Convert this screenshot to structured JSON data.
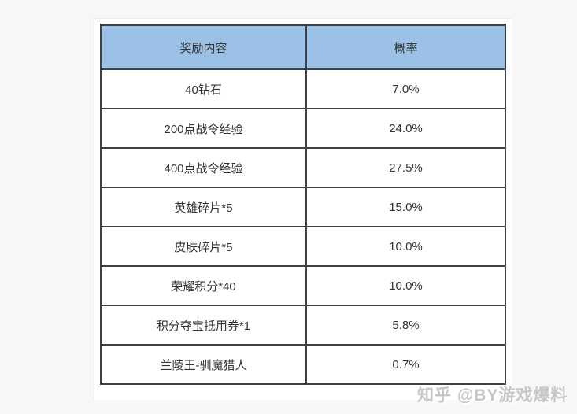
{
  "table": {
    "headers": [
      "奖励内容",
      "概率"
    ],
    "rows": [
      {
        "item": "40钻石",
        "prob": "7.0%"
      },
      {
        "item": "200点战令经验",
        "prob": "24.0%"
      },
      {
        "item": "400点战令经验",
        "prob": "27.5%"
      },
      {
        "item": "英雄碎片*5",
        "prob": "15.0%"
      },
      {
        "item": "皮肤碎片*5",
        "prob": "10.0%"
      },
      {
        "item": "荣耀积分*40",
        "prob": "10.0%"
      },
      {
        "item": "积分夺宝抵用券*1",
        "prob": "5.8%"
      },
      {
        "item": "兰陵王-驯魔猎人",
        "prob": "0.7%"
      }
    ]
  },
  "watermark": "知乎 @BY游戏爆料",
  "colors": {
    "header_bg": "#9bc1e6",
    "border": "#3c4148",
    "text": "#333333",
    "page_bg": "#f7f7f7",
    "panel_bg": "#ffffff",
    "watermark": "#c6c6c6"
  },
  "chart_data": {
    "type": "table",
    "title": "",
    "columns": [
      "奖励内容",
      "概率"
    ],
    "rows": [
      [
        "40钻石",
        "7.0%"
      ],
      [
        "200点战令经验",
        "24.0%"
      ],
      [
        "400点战令经验",
        "27.5%"
      ],
      [
        "英雄碎片*5",
        "15.0%"
      ],
      [
        "皮肤碎片*5",
        "10.0%"
      ],
      [
        "荣耀积分*40",
        "10.0%"
      ],
      [
        "积分夺宝抵用券*1",
        "5.8%"
      ],
      [
        "兰陵王-驯魔猎人",
        "0.7%"
      ]
    ],
    "probabilities_percent": [
      7.0,
      24.0,
      27.5,
      15.0,
      10.0,
      10.0,
      5.8,
      0.7
    ]
  }
}
